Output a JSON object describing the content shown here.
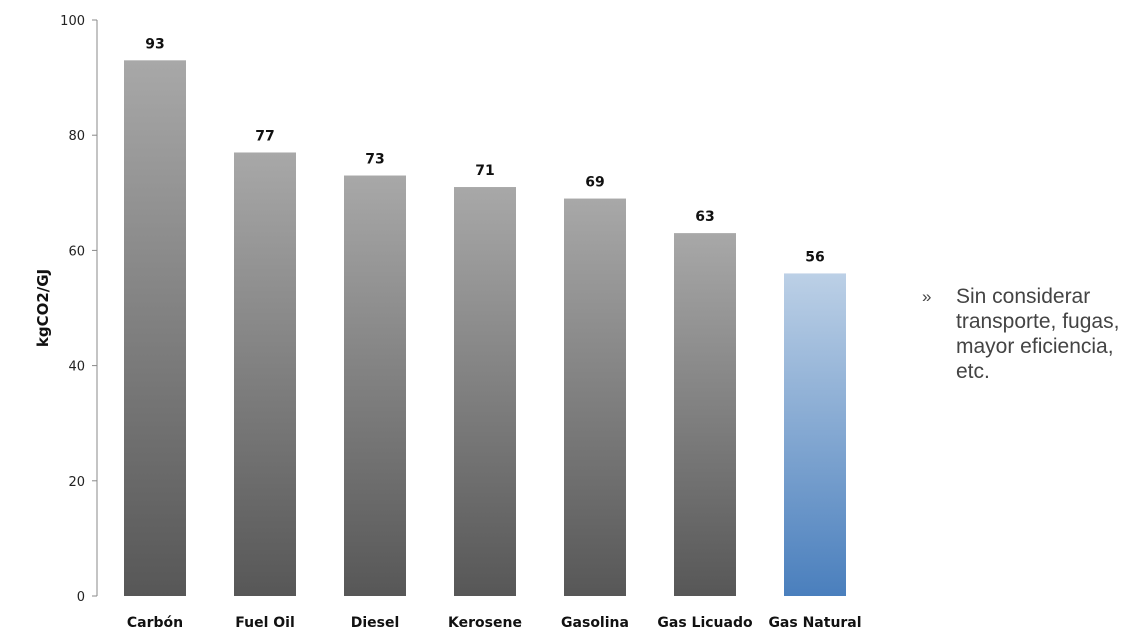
{
  "chart_data": {
    "type": "bar",
    "categories": [
      "Carbón",
      "Fuel Oil",
      "Diesel",
      "Kerosene",
      "Gasolina",
      "Gas Licuado",
      "Gas Natural"
    ],
    "values": [
      93,
      77,
      73,
      71,
      69,
      63,
      56
    ],
    "ylabel": "kgCO2/GJ",
    "xlabel": "",
    "ylim": [
      0,
      100
    ],
    "yticks": [
      0,
      20,
      40,
      60,
      80,
      100
    ],
    "highlight_index": 6,
    "colors": {
      "gray_top": "#a8a8a8",
      "gray_bottom": "#575757",
      "blue_top": "#bcd0e6",
      "blue_bottom": "#4a7fbd"
    },
    "grid": false,
    "legend": "none"
  },
  "note": {
    "bullet": "»",
    "text": "Sin considerar transporte, fugas, mayor eficiencia, etc."
  }
}
